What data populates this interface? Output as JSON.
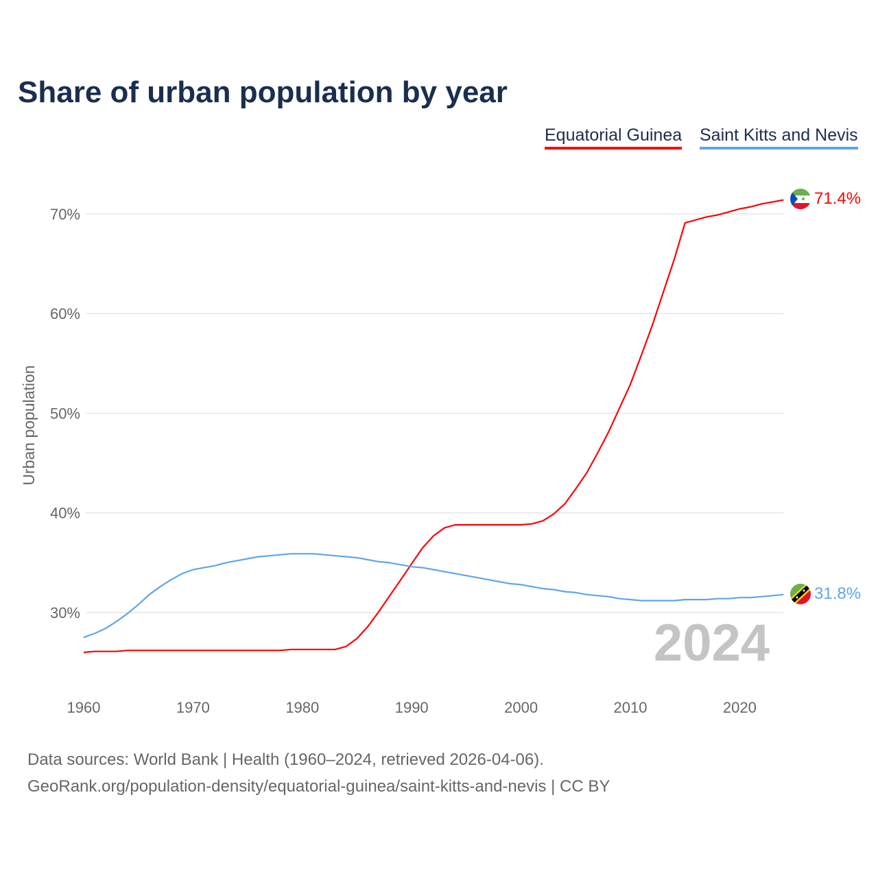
{
  "chart_data": {
    "type": "line",
    "title": "Share of urban population by year",
    "ylabel": "Urban population",
    "xlabel": "",
    "xlim": [
      1960,
      2024
    ],
    "ylim": [
      25,
      72
    ],
    "y_ticks": [
      30,
      40,
      50,
      60,
      70
    ],
    "y_tick_labels": [
      "30%",
      "40%",
      "50%",
      "60%",
      "70%"
    ],
    "x_ticks": [
      1960,
      1970,
      1980,
      1990,
      2000,
      2010,
      2020
    ],
    "x_tick_labels": [
      "1960",
      "1970",
      "1980",
      "1990",
      "2000",
      "2010",
      "2020"
    ],
    "grid": true,
    "legend_position": "top-right",
    "year_watermark": "2024",
    "series": [
      {
        "name": "Equatorial Guinea",
        "color": "#ff0000",
        "end_label": "71.4%",
        "flag": "equatorial-guinea-flag",
        "values": [
          26.0,
          26.1,
          26.1,
          26.1,
          26.2,
          26.2,
          26.2,
          26.2,
          26.2,
          26.2,
          26.2,
          26.2,
          26.2,
          26.2,
          26.2,
          26.2,
          26.2,
          26.2,
          26.2,
          26.3,
          26.3,
          26.3,
          26.3,
          26.3,
          26.6,
          27.4,
          28.6,
          30.1,
          31.7,
          33.3,
          34.9,
          36.5,
          37.7,
          38.5,
          38.8,
          38.8,
          38.8,
          38.8,
          38.8,
          38.8,
          38.8,
          38.9,
          39.2,
          39.9,
          40.9,
          42.4,
          44.0,
          46.0,
          48.1,
          50.5,
          52.9,
          55.8,
          58.8,
          62.1,
          65.4,
          69.1,
          69.4,
          69.7,
          69.9,
          70.2,
          70.5,
          70.7,
          71.0,
          71.2,
          71.4
        ]
      },
      {
        "name": "Saint Kitts and Nevis",
        "color": "#5ea5ea",
        "end_label": "31.8%",
        "flag": "saint-kitts-and-nevis-flag",
        "values": [
          27.5,
          27.9,
          28.4,
          29.1,
          29.9,
          30.8,
          31.8,
          32.6,
          33.3,
          33.9,
          34.3,
          34.5,
          34.7,
          35.0,
          35.2,
          35.4,
          35.6,
          35.7,
          35.8,
          35.9,
          35.9,
          35.9,
          35.8,
          35.7,
          35.6,
          35.5,
          35.3,
          35.1,
          35.0,
          34.8,
          34.6,
          34.5,
          34.3,
          34.1,
          33.9,
          33.7,
          33.5,
          33.3,
          33.1,
          32.9,
          32.8,
          32.6,
          32.4,
          32.3,
          32.1,
          32.0,
          31.8,
          31.7,
          31.6,
          31.4,
          31.3,
          31.2,
          31.2,
          31.2,
          31.2,
          31.3,
          31.3,
          31.3,
          31.4,
          31.4,
          31.5,
          31.5,
          31.6,
          31.7,
          31.8
        ]
      }
    ]
  },
  "footer": {
    "line1": "Data sources: World Bank | Health (1960–2024, retrieved 2026-04-06).",
    "line2": "GeoRank.org/population-density/equatorial-guinea/saint-kitts-and-nevis | CC BY"
  }
}
